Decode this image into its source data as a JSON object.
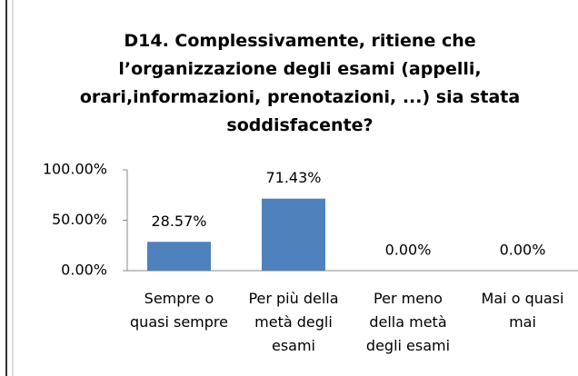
{
  "chart_data": {
    "type": "bar",
    "title": "D14. Complessivamente, ritiene che l’organizzazione degli esami (appelli, orari,informazioni, prenotazioni, ...) sia stata soddisfacente?",
    "categories": [
      "Sempre o quasi sempre",
      "Per più della metà degli esami",
      "Per meno della metà degli esami",
      "Mai o quasi mai"
    ],
    "values": [
      28.57,
      71.43,
      0,
      0
    ],
    "value_labels": [
      "28.57%",
      "71.43%",
      "0.00%",
      "0.00%"
    ],
    "color": "#4f81bd",
    "ylim": [
      0,
      100
    ],
    "yticks": [
      {
        "value": 0,
        "label": "0.00%"
      },
      {
        "value": 50,
        "label": "50.00%"
      },
      {
        "value": 100,
        "label": "100.00%"
      }
    ],
    "grid": false
  }
}
